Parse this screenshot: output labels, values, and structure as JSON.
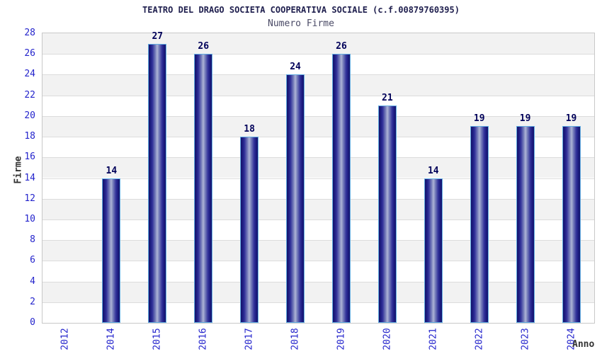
{
  "header": {
    "title": "TEATRO DEL DRAGO SOCIETA COOPERATIVA SOCIALE (c.f.00879760395)",
    "subtitle": "Numero Firme"
  },
  "chart_data": {
    "type": "bar",
    "categories": [
      "2012",
      "2014",
      "2015",
      "2016",
      "2017",
      "2018",
      "2019",
      "2020",
      "2021",
      "2022",
      "2023",
      "2024"
    ],
    "values": [
      0,
      14,
      27,
      26,
      18,
      24,
      26,
      21,
      14,
      19,
      19,
      19
    ],
    "title": "TEATRO DEL DRAGO SOCIETA COOPERATIVA SOCIALE (c.f.00879760395)",
    "subtitle": "Numero Firme",
    "xlabel": "Anno",
    "ylabel": "Firme",
    "ylim": [
      0,
      28
    ],
    "ytick_step": 2,
    "grid": "horizontal-bands-alternating",
    "legend": "none",
    "bar_value_labels_shown": true
  },
  "colors": {
    "title": "#1f1f4e",
    "subtitle": "#4a4a66",
    "tick": "#2424cc",
    "value_label": "#000059",
    "axis_title": "#333333",
    "plot_border": "#c8c8c8",
    "gridline": "#dcdcdc",
    "band_gray": "#f2f2f2",
    "band_white": "#ffffff",
    "bar_border": "#64aee2",
    "bar_edge": "#14146b",
    "bar_center": "#aeb4d6"
  }
}
